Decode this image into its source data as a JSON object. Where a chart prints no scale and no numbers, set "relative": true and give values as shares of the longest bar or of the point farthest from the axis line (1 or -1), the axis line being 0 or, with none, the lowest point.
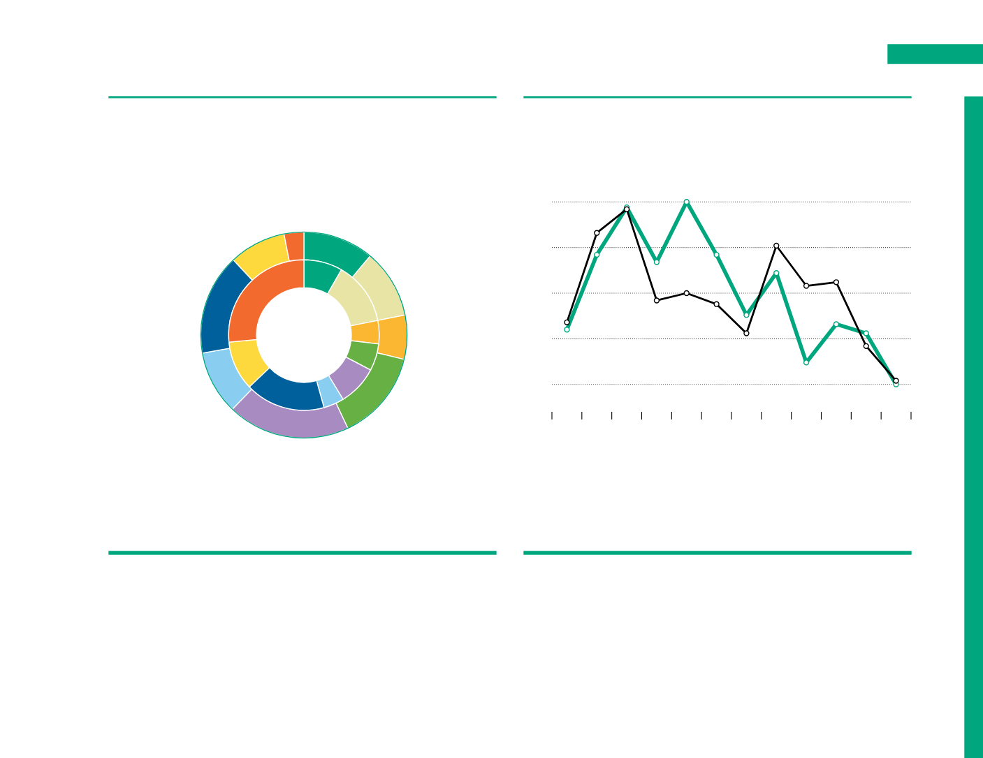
{
  "chart_data": [
    {
      "type": "donut",
      "categories": [
        null,
        null,
        null,
        null,
        null,
        null,
        null,
        null,
        null
      ],
      "series": [
        {
          "colors": [
            "#00a77e",
            "#e8e4a6",
            "#fbb731",
            "#66b044",
            "#a88bc1",
            "#89cdf1",
            "#00609c",
            "#fdd93d",
            "#f26a2e"
          ],
          "values": [
            11.1,
            10.8,
            6.9,
            14.2,
            19.2,
            10.0,
            15.8,
            8.9,
            3.1
          ]
        },
        {
          "colors": [
            "#00a77e",
            "#e8e4a6",
            "#fbb731",
            "#66b044",
            "#a88bc1",
            "#89cdf1",
            "#00609c",
            "#fdd93d",
            "#f26a2e"
          ],
          "values": [
            8.3,
            13.6,
            5.0,
            5.8,
            8.6,
            4.4,
            17.2,
            10.6,
            26.5
          ]
        }
      ]
    },
    {
      "type": "line",
      "relative": true,
      "categories": [
        null,
        null,
        null,
        null,
        null,
        null,
        null,
        null,
        null,
        null,
        null,
        null
      ],
      "grid": "y",
      "marker": "circle",
      "series": [
        {
          "color": "#00a77e",
          "values": [
            0.3,
            0.71,
            0.97,
            0.67,
            1.0,
            0.71,
            0.38,
            0.61,
            0.12,
            0.33,
            0.28,
            0.0
          ]
        },
        {
          "color": "#000000",
          "values": [
            0.34,
            0.83,
            0.96,
            0.46,
            0.5,
            0.44,
            0.28,
            0.76,
            0.54,
            0.56,
            0.21,
            0.02
          ]
        }
      ]
    }
  ]
}
